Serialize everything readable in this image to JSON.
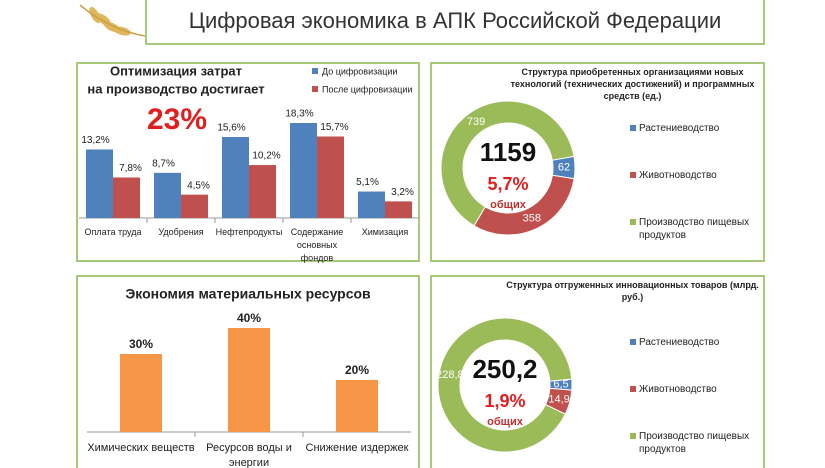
{
  "title": "Цифровая экономика в АПК Российской Федерации",
  "chart_data": [
    {
      "type": "bar",
      "title": [
        "Оптимизация затрат",
        "на производство достигает"
      ],
      "annotation": "23%",
      "categories": [
        "Оплата труда",
        "Удобрения",
        "Нефтепродукты",
        "Содержание основных фондов",
        "Химизация"
      ],
      "series": [
        {
          "name": "До цифровизации",
          "color": "#4f81bd",
          "values": [
            13.2,
            8.7,
            15.6,
            18.3,
            5.1
          ],
          "value_labels": [
            "13,2%",
            "8,7%",
            "15,6%",
            "18,3%",
            "5,1%"
          ]
        },
        {
          "name": "После цифровизации",
          "color": "#c0504d",
          "values": [
            7.8,
            4.5,
            10.2,
            15.7,
            3.2
          ],
          "value_labels": [
            "7,8%",
            "4,5%",
            "10,2%",
            "15,7%",
            "3,2%"
          ]
        }
      ],
      "legend": "top-right"
    },
    {
      "type": "pie",
      "title": "Структура приобретенных организациями новых технологий (технических достижений) и программных средств (ед.)",
      "center_title": "1159",
      "annotation": "5,7%",
      "annotation_note": "общих",
      "categories": [
        "Растениеводство",
        "Животноводство",
        "Производство пищевых продуктов"
      ],
      "values": [
        62,
        358,
        739
      ],
      "colors": [
        "#4f81bd",
        "#c0504d",
        "#9bbb59"
      ],
      "legend": "right"
    },
    {
      "type": "bar",
      "title": "Экономия материальных ресурсов",
      "categories": [
        "Химических веществ",
        "Ресурсов воды и энергии",
        "Снижение издержек"
      ],
      "values": [
        30,
        40,
        20
      ],
      "value_labels": [
        "30%",
        "40%",
        "20%"
      ],
      "color": "#f79646"
    },
    {
      "type": "pie",
      "title": "Структура отгруженных инновационных товаров (млрд. руб.)",
      "center_title": "250,2",
      "annotation": "1,9%",
      "annotation_note": "общих",
      "categories": [
        "Растениеводство",
        "Животноводство",
        "Производство пищевых продуктов"
      ],
      "values": [
        6.5,
        14.9,
        228.8
      ],
      "value_labels": [
        "6,5",
        "14,9",
        "228,8"
      ],
      "colors": [
        "#4f81bd",
        "#c0504d",
        "#9bbb59"
      ],
      "legend": "right"
    }
  ]
}
